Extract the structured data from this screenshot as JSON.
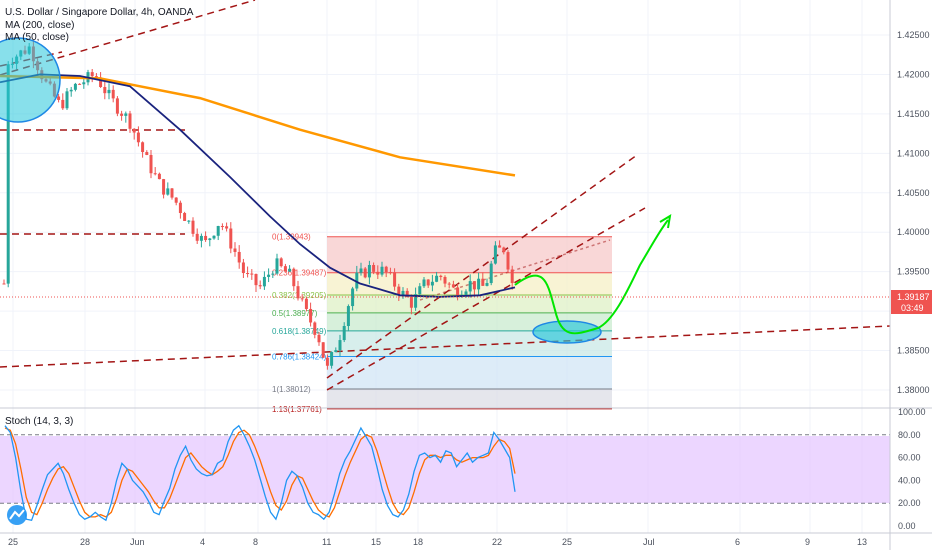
{
  "chart_data": {
    "type": "candlestick",
    "title": "U.S. Dollar / Singapore Dollar, 4h, OANDA",
    "indicators": [
      "MA (200, close)",
      "MA (50, close)"
    ],
    "price_axis": {
      "ticks": [
        "1.42500",
        "1.42000",
        "1.41500",
        "1.41000",
        "1.40500",
        "1.40000",
        "1.39500",
        "1.39000",
        "1.38500",
        "1.38000"
      ],
      "range": [
        1.3775,
        1.4295
      ],
      "current_price": "1.39187",
      "countdown": "03:49",
      "current_price_value": 1.39187
    },
    "time_axis": {
      "labels": [
        "25",
        "28",
        "Jun",
        "4",
        "8",
        "11",
        "15",
        "18",
        "22",
        "25",
        "Jul",
        "6",
        "9",
        "13"
      ]
    },
    "fib_levels": [
      {
        "label": "0(1.39943)",
        "value": 1.39943,
        "color": "#ef5350"
      },
      {
        "label": "0.236(1.39487)",
        "value": 1.39487,
        "color": "#ef5350"
      },
      {
        "label": "0.382(1.39205)",
        "value": 1.39205,
        "color": "#8bc34a"
      },
      {
        "label": "0.5(1.38977)",
        "value": 1.38977,
        "color": "#4caf50"
      },
      {
        "label": "0.618(1.38749)",
        "value": 1.38749,
        "color": "#26a69a"
      },
      {
        "label": "0.786(1.38424)",
        "value": 1.38424,
        "color": "#2196f3"
      },
      {
        "label": "1(1.38012)",
        "value": 1.38012,
        "color": "#787b86"
      },
      {
        "label": "1.13(1.37761)",
        "value": 1.37761,
        "color": "#b71c1c"
      }
    ],
    "stoch": {
      "label": "Stoch (14, 3, 3)",
      "ticks": [
        "100.00",
        "80.00",
        "60.00",
        "40.00",
        "20.00",
        "0.00"
      ],
      "range": [
        0,
        100
      ],
      "upper": 80,
      "lower": 20,
      "k": [
        88,
        82,
        60,
        30,
        6,
        5,
        18,
        32,
        45,
        50,
        55,
        46,
        32,
        20,
        10,
        6,
        8,
        12,
        8,
        5,
        20,
        40,
        55,
        50,
        40,
        35,
        30,
        22,
        12,
        10,
        22,
        33,
        50,
        62,
        70,
        58,
        50,
        46,
        44,
        45,
        55,
        58,
        74,
        84,
        88,
        80,
        70,
        58,
        42,
        26,
        12,
        6,
        20,
        40,
        48,
        44,
        34,
        20,
        12,
        10,
        6,
        12,
        28,
        46,
        58,
        66,
        76,
        86,
        78,
        70,
        52,
        32,
        18,
        10,
        8,
        14,
        28,
        48,
        62,
        64,
        60,
        62,
        56,
        66,
        64,
        52,
        58,
        64,
        56,
        60,
        62,
        64,
        82,
        76,
        68,
        60,
        30
      ],
      "d": [
        86,
        84,
        72,
        50,
        25,
        12,
        10,
        20,
        32,
        42,
        50,
        52,
        46,
        34,
        22,
        12,
        8,
        8,
        10,
        8,
        12,
        24,
        40,
        50,
        48,
        42,
        36,
        30,
        22,
        16,
        16,
        24,
        36,
        48,
        60,
        64,
        58,
        52,
        48,
        45,
        48,
        52,
        62,
        74,
        82,
        84,
        80,
        70,
        58,
        44,
        30,
        18,
        14,
        22,
        36,
        44,
        42,
        32,
        22,
        14,
        10,
        8,
        16,
        30,
        44,
        56,
        66,
        76,
        80,
        78,
        66,
        50,
        34,
        20,
        12,
        10,
        16,
        30,
        46,
        58,
        62,
        62,
        60,
        62,
        62,
        58,
        56,
        58,
        60,
        60,
        60,
        62,
        70,
        76,
        74,
        68,
        46
      ],
      "k_color": "#2196f3",
      "d_color": "#ff6d00"
    },
    "colors": {
      "up": "#26a69a",
      "down": "#ef5350",
      "ma200": "#ff9800",
      "ma50": "#1a237e",
      "trendline": "#a31515",
      "projection": "#00e600",
      "ellipse": "#26c6da"
    }
  }
}
